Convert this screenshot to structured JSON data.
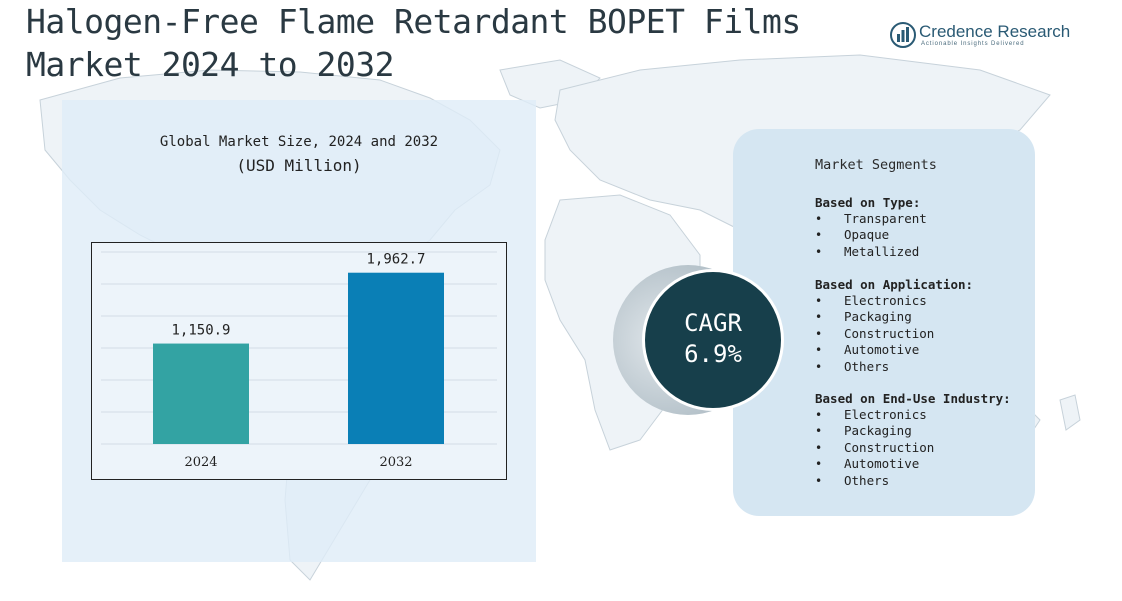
{
  "title_line1": "Halogen-Free Flame Retardant BOPET Films",
  "title_line2": "Market 2024 to 2032",
  "logo": {
    "name": "Credence Research",
    "tagline": "Actionable Insights Delivered"
  },
  "chart_caption": {
    "line1": "Global Market Size, 2024 and 2032",
    "line2": "(USD Million)"
  },
  "chart_data": {
    "type": "bar",
    "title": "Global Market Size, 2024 and 2032",
    "subtitle": "(USD Million)",
    "categories": [
      "2024",
      "2032"
    ],
    "values": [
      1150.9,
      1962.7
    ],
    "value_labels": [
      "1,150.9",
      "1,962.7"
    ],
    "colors": [
      "#33a3a3",
      "#0a7fb6"
    ],
    "grid": true,
    "ylim": [
      0,
      2200
    ]
  },
  "cagr": {
    "label": "CAGR",
    "value": "6.9%"
  },
  "segments": {
    "title": "Market Segments",
    "groups": [
      {
        "heading": "Based on Type:",
        "items": [
          "Transparent",
          "Opaque",
          "Metallized"
        ]
      },
      {
        "heading": "Based on Application:",
        "items": [
          "Electronics",
          "Packaging",
          "Construction",
          "Automotive",
          "Others"
        ]
      },
      {
        "heading": "Based on End-Use Industry:",
        "items": [
          "Electronics",
          "Packaging",
          "Construction",
          "Automotive",
          "Others"
        ]
      }
    ]
  }
}
